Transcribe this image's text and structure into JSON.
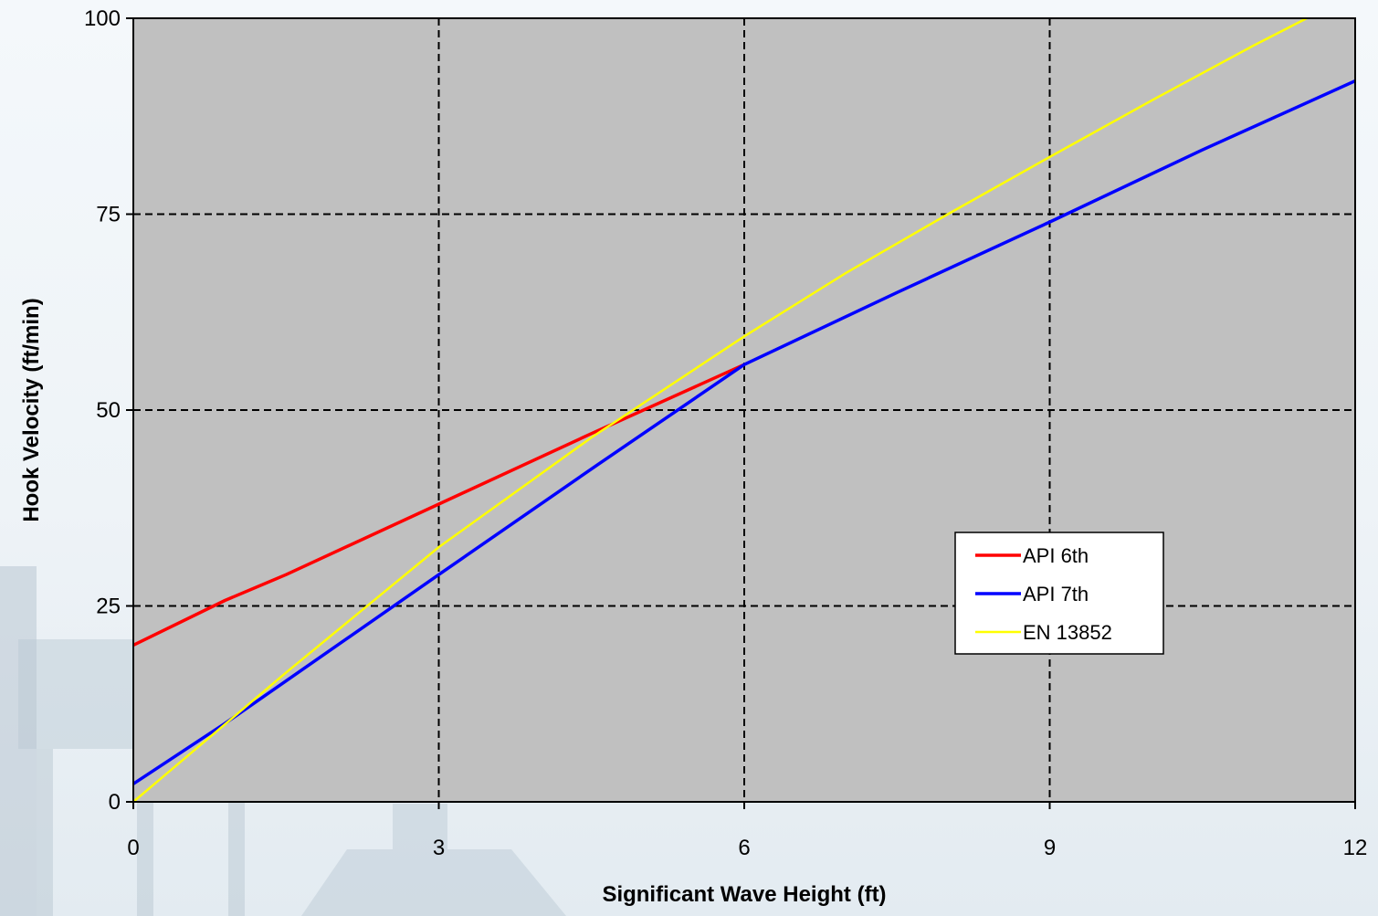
{
  "chart_data": {
    "type": "line",
    "xlabel": "Significant Wave Height (ft)",
    "ylabel": "Hook Velocity (ft/min)",
    "xlim": [
      0,
      12
    ],
    "ylim": [
      0,
      100
    ],
    "x_ticks": [
      0,
      3,
      6,
      9,
      12
    ],
    "y_ticks": [
      0,
      25,
      50,
      75,
      100
    ],
    "grid": true,
    "grid_style": "dashed",
    "legend_position": "right-middle",
    "plot_background": "#c0c0c0",
    "series": [
      {
        "name": "API 6th",
        "color": "#ff0000",
        "points": [
          [
            0,
            20
          ],
          [
            0.9,
            25.7
          ],
          [
            1.5,
            29
          ],
          [
            3,
            38
          ],
          [
            4.5,
            47
          ],
          [
            6,
            55.8
          ]
        ]
      },
      {
        "name": "API 7th",
        "color": "#0000ff",
        "points": [
          [
            0,
            2.3
          ],
          [
            0.9,
            10
          ],
          [
            3,
            29
          ],
          [
            4.5,
            42.5
          ],
          [
            6,
            55.8
          ],
          [
            7.5,
            65
          ],
          [
            9,
            74
          ],
          [
            10.5,
            83.2
          ],
          [
            12,
            92
          ]
        ]
      },
      {
        "name": "EN 13852",
        "color": "#ffff00",
        "points": [
          [
            0,
            0
          ],
          [
            1.5,
            16.5
          ],
          [
            3,
            32.5
          ],
          [
            4.5,
            46.5
          ],
          [
            6,
            59.4
          ],
          [
            7,
            67.5
          ],
          [
            8,
            75
          ],
          [
            9,
            82.3
          ],
          [
            10,
            89.5
          ],
          [
            11,
            96.5
          ],
          [
            11.6,
            100.5
          ]
        ]
      }
    ]
  }
}
